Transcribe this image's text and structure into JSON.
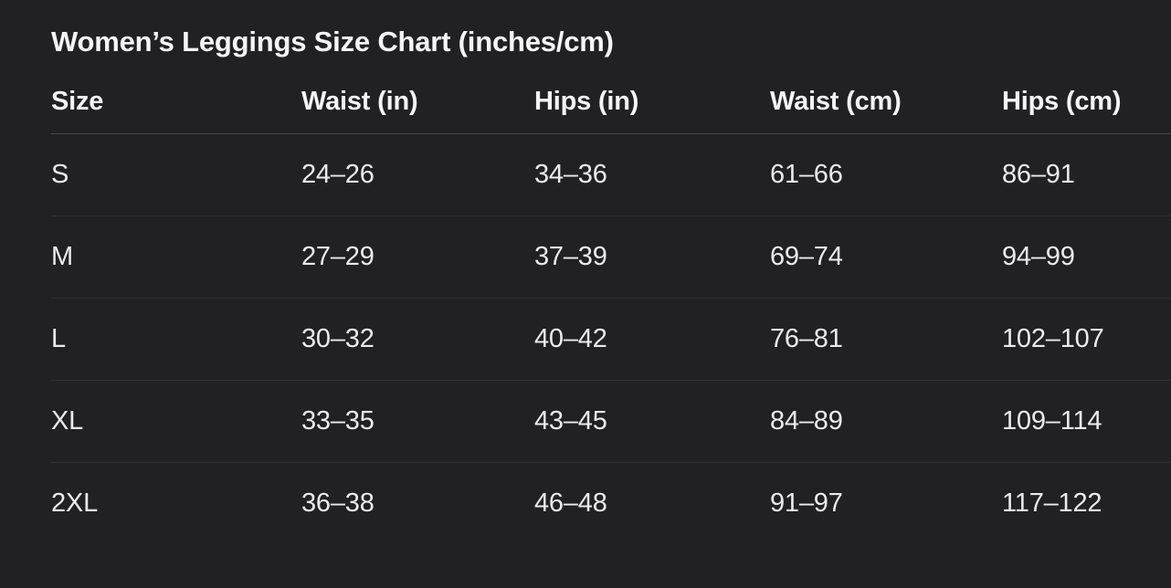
{
  "page": {
    "title": "Women’s Leggings Size Chart (inches/cm)"
  },
  "table": {
    "headers": {
      "size": "Size",
      "waist_in": "Waist (in)",
      "hips_in": "Hips (in)",
      "waist_cm": "Waist (cm)",
      "hips_cm": "Hips (cm)"
    },
    "rows": [
      {
        "size": "S",
        "waist_in": "24–26",
        "hips_in": "34–36",
        "waist_cm": "61–66",
        "hips_cm": "86–91"
      },
      {
        "size": "M",
        "waist_in": "27–29",
        "hips_in": "37–39",
        "waist_cm": "69–74",
        "hips_cm": "94–99"
      },
      {
        "size": "L",
        "waist_in": "30–32",
        "hips_in": "40–42",
        "waist_cm": "76–81",
        "hips_cm": "102–107"
      },
      {
        "size": "XL",
        "waist_in": "33–35",
        "hips_in": "43–45",
        "waist_cm": "84–89",
        "hips_cm": "109–114"
      },
      {
        "size": "2XL",
        "waist_in": "36–38",
        "hips_in": "46–48",
        "waist_cm": "91–97",
        "hips_cm": "117–122"
      }
    ]
  },
  "colors": {
    "background": "#212123",
    "text_primary": "#f5f5f7",
    "text_data": "#ebebed",
    "header_divider": "#47474a",
    "row_divider": "#303033"
  }
}
